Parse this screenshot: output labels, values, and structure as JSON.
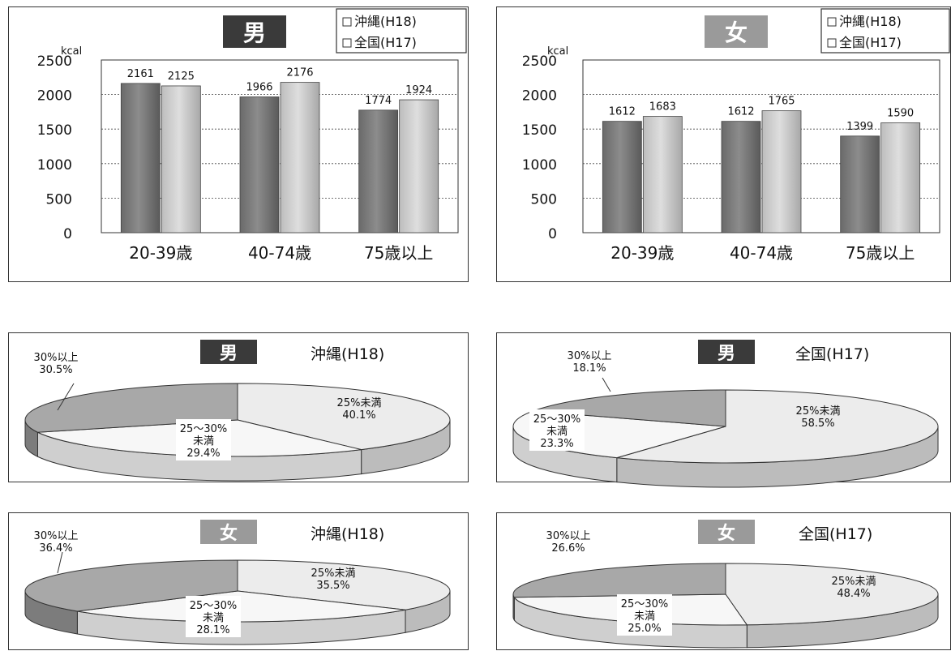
{
  "chart_data": [
    {
      "type": "bar",
      "badge": "男",
      "unit": "kcal",
      "categories": [
        "20-39歳",
        "40-74歳",
        "75歳以上"
      ],
      "series": [
        {
          "name": "沖縄(H18)",
          "values": [
            2161,
            1966,
            1774
          ],
          "color": "#8c8c8c"
        },
        {
          "name": "全国(H17)",
          "values": [
            2125,
            2176,
            1924
          ],
          "color": "#dedede"
        }
      ],
      "value_labels": [
        [
          "2161",
          "1966",
          "1774"
        ],
        [
          "2125",
          "2176",
          "1924"
        ]
      ],
      "ylim": [
        0,
        2500
      ],
      "yticks": [
        "0",
        "500",
        "1000",
        "1500",
        "2000",
        "2500"
      ],
      "grid": true,
      "legend": "top-right"
    },
    {
      "type": "bar",
      "badge": "女",
      "unit": "kcal",
      "categories": [
        "20-39歳",
        "40-74歳",
        "75歳以上"
      ],
      "series": [
        {
          "name": "沖縄(H18)",
          "values": [
            1612,
            1612,
            1399
          ],
          "color": "#8c8c8c"
        },
        {
          "name": "全国(H17)",
          "values": [
            1683,
            1765,
            1590
          ],
          "color": "#dedede"
        }
      ],
      "value_labels": [
        [
          "1612",
          "1612",
          "1399"
        ],
        [
          "1683",
          "1765",
          "1590"
        ]
      ],
      "ylim": [
        0,
        2500
      ],
      "yticks": [
        "0",
        "500",
        "1000",
        "1500",
        "2000",
        "2500"
      ],
      "grid": true,
      "legend": "top-right"
    },
    {
      "type": "pie",
      "badge": "男",
      "title": "沖縄(H18)",
      "slices": [
        {
          "name": "25%未満",
          "value": 40.1,
          "label": "40.1%"
        },
        {
          "name": "25〜30%未満",
          "value": 29.4,
          "label": "29.4%"
        },
        {
          "name": "30%以上",
          "value": 30.5,
          "label": "30.5%"
        }
      ]
    },
    {
      "type": "pie",
      "badge": "男",
      "title": "全国(H17)",
      "slices": [
        {
          "name": "25%未満",
          "value": 58.5,
          "label": "58.5%"
        },
        {
          "name": "25〜30%未満",
          "value": 23.3,
          "label": "23.3%"
        },
        {
          "name": "30%以上",
          "value": 18.1,
          "label": "18.1%"
        }
      ]
    },
    {
      "type": "pie",
      "badge": "女",
      "title": "沖縄(H18)",
      "slices": [
        {
          "name": "25%未満",
          "value": 35.5,
          "label": "35.5%"
        },
        {
          "name": "25〜30%未満",
          "value": 28.1,
          "label": "28.1%"
        },
        {
          "name": "30%以上",
          "value": 36.4,
          "label": "36.4%"
        }
      ]
    },
    {
      "type": "pie",
      "badge": "女",
      "title": "全国(H17)",
      "slices": [
        {
          "name": "25%未満",
          "value": 48.4,
          "label": "48.4%"
        },
        {
          "name": "25〜30%未満",
          "value": 25.0,
          "label": "25.0%"
        },
        {
          "name": "30%以上",
          "value": 26.6,
          "label": "26.6%"
        }
      ]
    }
  ],
  "colors": {
    "pie_low": "#ececec",
    "pie_mid": "#f7f7f7",
    "pie_high": "#a8a8a8",
    "badge_male": "#3a3a3a",
    "badge_female": "#9a9a9a"
  }
}
